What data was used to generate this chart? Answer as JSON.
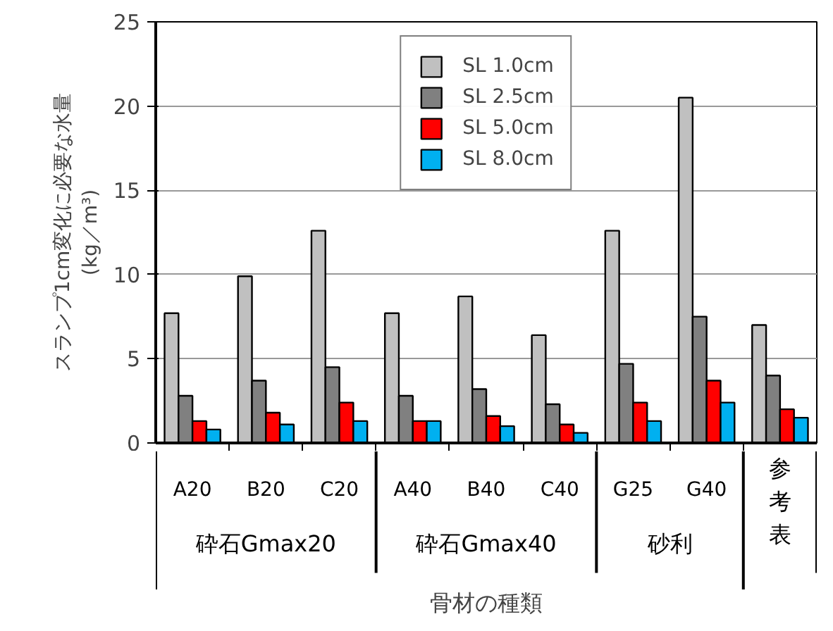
{
  "chart_data": {
    "type": "bar",
    "xlabel": "骨材の種類",
    "ylabel": "スランプ1cm変化に必要な水量\n(kg／m³)",
    "categories": [
      "A20",
      "B20",
      "C20",
      "A40",
      "B40",
      "C40",
      "G25",
      "G40",
      "参考表"
    ],
    "series": [
      {
        "name": "SL 1.0cm",
        "color": "#c0c0c0",
        "values": [
          7.7,
          9.9,
          12.6,
          7.7,
          8.7,
          6.4,
          12.6,
          20.5,
          7.0
        ]
      },
      {
        "name": "SL 2.5cm",
        "color": "#808080",
        "values": [
          2.8,
          3.7,
          4.5,
          2.8,
          3.2,
          2.3,
          4.7,
          7.5,
          4.0
        ]
      },
      {
        "name": "SL 5.0cm",
        "color": "#ff0000",
        "values": [
          1.3,
          1.8,
          2.4,
          1.3,
          1.6,
          1.1,
          2.4,
          3.7,
          2.0
        ]
      },
      {
        "name": "SL 8.0cm",
        "color": "#00b0f0",
        "values": [
          0.8,
          1.1,
          1.3,
          1.3,
          1.0,
          0.6,
          1.3,
          2.4,
          1.5
        ]
      }
    ],
    "annotations": [
      "砕石Gmax20",
      "砕石Gmax40",
      "砂利"
    ],
    "ylim": [
      0,
      25
    ],
    "yticks": [
      0,
      5,
      10,
      15,
      20,
      25
    ],
    "grid": "y",
    "legend": "top"
  }
}
